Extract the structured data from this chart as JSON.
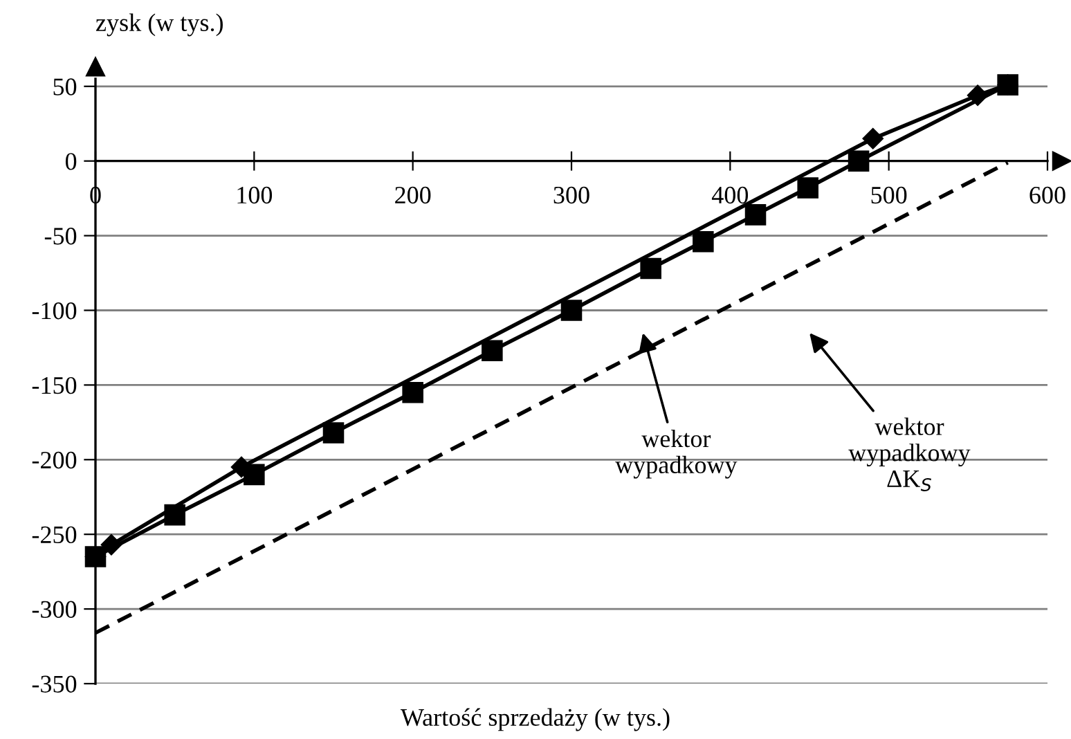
{
  "chart_data": {
    "type": "line",
    "xlabel": "Wartość sprzedaży (w tys.)",
    "ylabel": "zysk (w tys.)",
    "xlim": [
      0,
      600
    ],
    "xticks": [
      0,
      100,
      200,
      300,
      400,
      500,
      600
    ],
    "ylim": [
      -350,
      55
    ],
    "yticks": [
      -350,
      -300,
      -250,
      -200,
      -150,
      -100,
      -50,
      0,
      50
    ],
    "grid": "y",
    "series": [
      {
        "color": "#000000",
        "marker": "diamond",
        "line_style": "solid",
        "x": [
          0,
          10,
          92,
          490,
          556,
          575
        ],
        "values": [
          -265,
          -257,
          -205,
          15,
          44,
          51
        ]
      },
      {
        "color": "#000000",
        "marker": "square",
        "line_style": "solid",
        "x": [
          0,
          50,
          100,
          150,
          200,
          250,
          300,
          350,
          383,
          416,
          449,
          481,
          575
        ],
        "values": [
          -265,
          -237,
          -210,
          -182,
          -155,
          -127,
          -100,
          -72,
          -54,
          -36,
          -18,
          0,
          51
        ]
      },
      {
        "color": "#000000",
        "marker": "none",
        "line_style": "dashed",
        "x": [
          0,
          575
        ],
        "values": [
          -316,
          -1
        ]
      }
    ],
    "annotations": [
      "wektor\nwypadkowy",
      "wektor\nwypadkowy\nΔK$_{S}$"
    ]
  }
}
